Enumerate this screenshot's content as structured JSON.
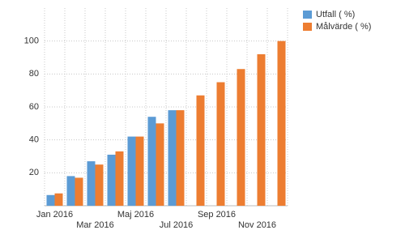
{
  "chart_data": {
    "type": "bar",
    "categories": [
      "Jan 2016",
      null,
      "Mar 2016",
      null,
      "Maj 2016",
      null,
      "Jul 2016",
      null,
      "Sep 2016",
      null,
      "Nov 2016",
      null
    ],
    "series": [
      {
        "name": "Utfall ( %)",
        "color": "#5b9bd5",
        "values": [
          6.5,
          18,
          27,
          31,
          42,
          54,
          58,
          null,
          null,
          null,
          null,
          null
        ]
      },
      {
        "name": "Målvärde ( %)",
        "color": "#ed7d31",
        "values": [
          7.5,
          17,
          25,
          33,
          42,
          50,
          58,
          67,
          75,
          83,
          92,
          100
        ]
      }
    ],
    "ylim": [
      0,
      120
    ],
    "yticks": [
      20,
      40,
      60,
      80,
      100
    ],
    "grid": true,
    "legend": "top-right"
  }
}
